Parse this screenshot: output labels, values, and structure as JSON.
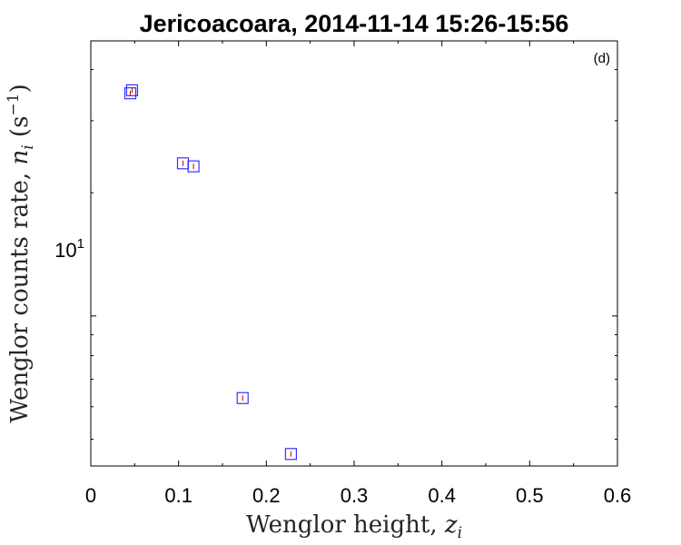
{
  "chart_data": {
    "type": "scatter",
    "title": "Jericoacoara, 2014-11-14 15:26-15:56",
    "panel_label": "(d)",
    "xlabel": "Wenglor height, ",
    "xlabel_var": "z",
    "xlabel_sub": "i",
    "ylabel": "Wenglor counts rate, ",
    "ylabel_var": "n",
    "ylabel_sub": "i",
    "ylabel_units": "(s",
    "ylabel_units_exp": "−1",
    "ylabel_units_close": ")",
    "xlim": [
      0,
      0.6
    ],
    "ylim": [
      4.3,
      47
    ],
    "yscale": "log",
    "xticks": [
      0,
      0.1,
      0.2,
      0.3,
      0.4,
      0.5,
      0.6
    ],
    "xtick_labels": [
      "0",
      "0.1",
      "0.2",
      "0.3",
      "0.4",
      "0.5",
      "0.6"
    ],
    "ytick_base": "10",
    "ytick_exp": "1",
    "grid": false,
    "series": [
      {
        "marker": "square",
        "color": "#3333ff",
        "errorbar_color": "#cc0000",
        "x": [
          0.045,
          0.047,
          0.105,
          0.117,
          0.173,
          0.228
        ],
        "y": [
          35.0,
          35.6,
          23.6,
          23.2,
          6.3,
          4.6
        ]
      }
    ]
  }
}
